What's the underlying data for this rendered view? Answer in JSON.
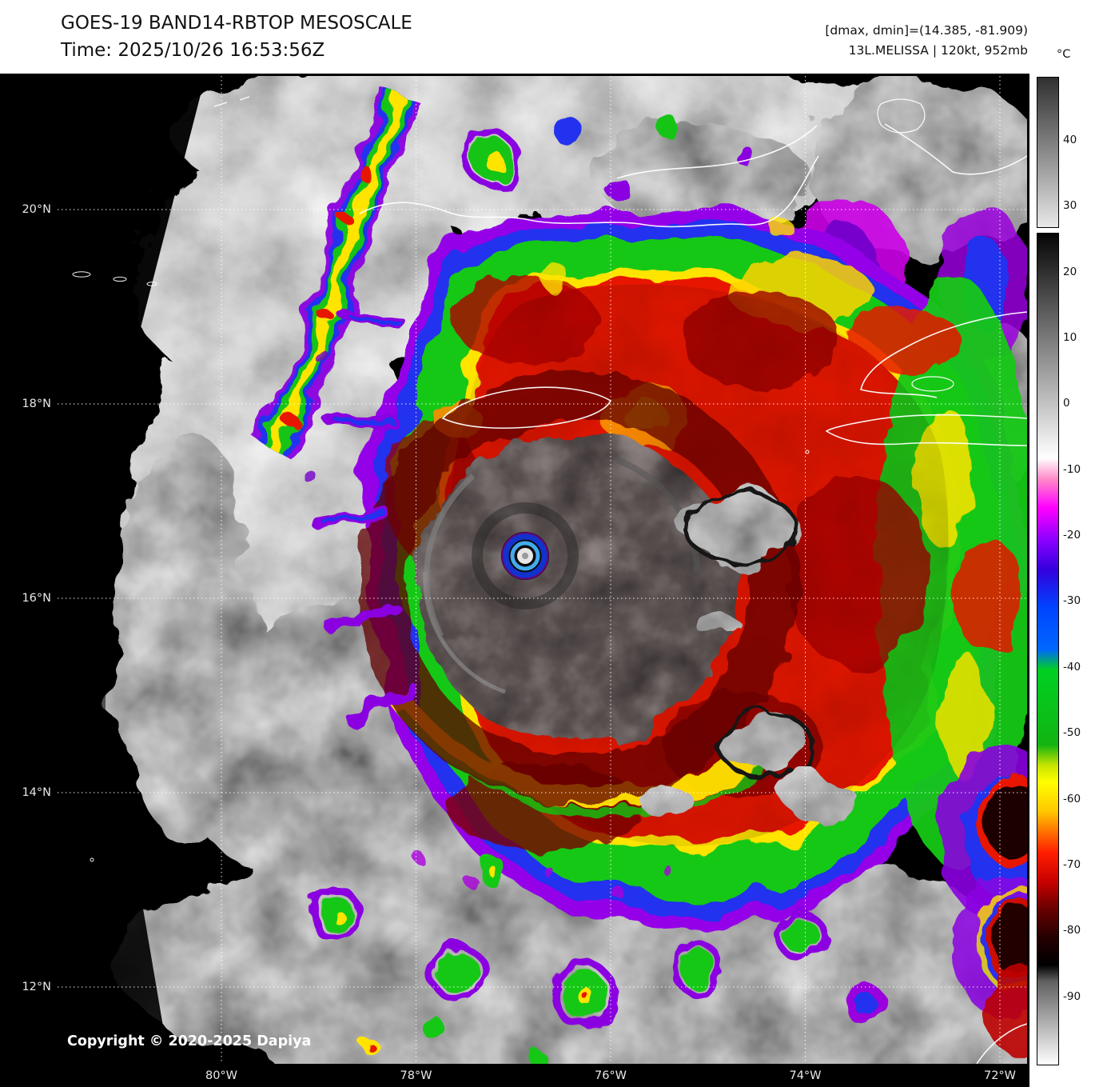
{
  "header": {
    "title": "GOES-19 BAND14-RBTOP MESOSCALE",
    "time_line": "Time: 2025/10/26 16:53:56Z",
    "range_line": "[dmax, dmin]=(14.385, -81.909)",
    "storm_line": "13L.MELISSA | 120kt, 952mb"
  },
  "colorbar": {
    "unit_label": "°C",
    "ticks": [
      "40",
      "30",
      "20",
      "10",
      "0",
      "-10",
      "-20",
      "-30",
      "-40",
      "-50",
      "-60",
      "-70",
      "-80",
      "-90"
    ]
  },
  "map": {
    "lat_labels": [
      "20°N",
      "18°N",
      "16°N",
      "14°N",
      "12°N"
    ],
    "lon_labels": [
      "80°W",
      "78°W",
      "76°W",
      "74°W",
      "72°W"
    ],
    "copyright": "Copyright © 2020-2025 Dapiya"
  }
}
